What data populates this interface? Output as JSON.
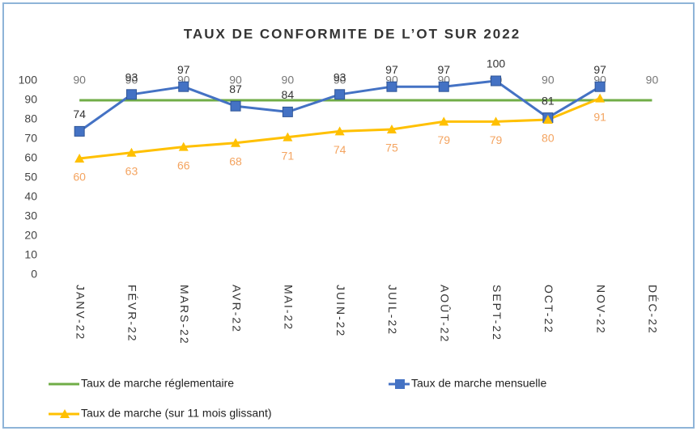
{
  "chart_data": {
    "type": "line",
    "title": "TAUX DE CONFORMITE DE L’OT SUR 2022",
    "categories": [
      "JANV-22",
      "FÉVR-22",
      "MARS-22",
      "AVR-22",
      "MAI-22",
      "JUIN-22",
      "JUIL-22",
      "AOÛT-22",
      "SEPT-22",
      "OCT-22",
      "NOV-22",
      "DÉC-22"
    ],
    "series": [
      {
        "name": "Taux de marche réglementaire",
        "color": "#70ad47",
        "marker": "none",
        "values": [
          90,
          90,
          90,
          90,
          90,
          90,
          90,
          90,
          90,
          90,
          90,
          90
        ]
      },
      {
        "name": "Taux de marche mensuelle",
        "color": "#4472c4",
        "marker": "square",
        "values": [
          74,
          93,
          97,
          87,
          84,
          93,
          97,
          97,
          100,
          81,
          97,
          null
        ]
      },
      {
        "name": "Taux de marche (sur 11 mois glissant)",
        "color": "#ffc000",
        "marker": "triangle",
        "values": [
          60,
          63,
          66,
          68,
          71,
          74,
          75,
          79,
          79,
          80,
          91,
          null
        ]
      }
    ],
    "ylim": [
      0,
      100
    ],
    "yticks": [
      0,
      10,
      20,
      30,
      40,
      50,
      60,
      70,
      80,
      90,
      100
    ],
    "grid": false,
    "data_labels": true,
    "legend": "bottom"
  }
}
